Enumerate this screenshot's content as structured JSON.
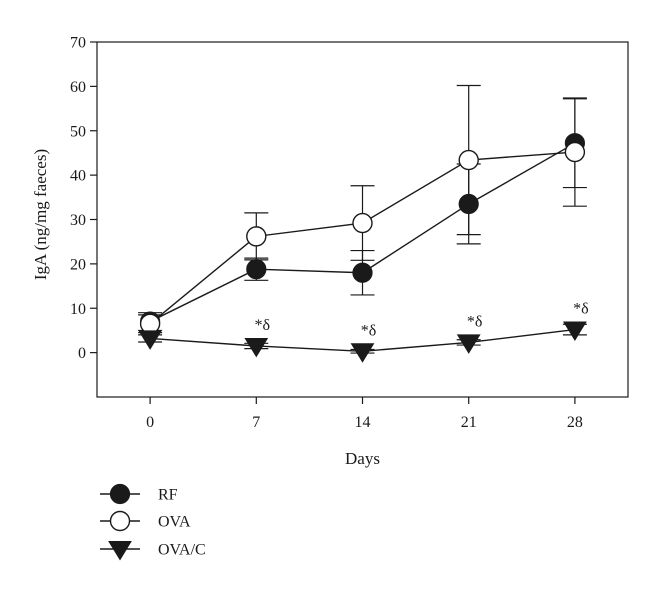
{
  "chart_data": {
    "type": "line",
    "xlabel": "Days",
    "ylabel": "IgA (ng/mg faeces)",
    "x": [
      0,
      7,
      14,
      21,
      28
    ],
    "xlim": [
      -3.5,
      31.5
    ],
    "ylim": [
      -10,
      70
    ],
    "yticks": [
      0,
      10,
      20,
      30,
      40,
      50,
      60,
      70
    ],
    "xticks": [
      0,
      7,
      14,
      21,
      28
    ],
    "grid": false,
    "legend_position": "below-left",
    "series": [
      {
        "name": "RF",
        "marker": "filled-circle",
        "values": [
          7,
          18.8,
          18,
          33.5,
          47.2
        ],
        "errors": [
          2,
          2.5,
          5,
          9,
          10
        ]
      },
      {
        "name": "OVA",
        "marker": "open-circle",
        "values": [
          6.5,
          26.2,
          29.2,
          43.4,
          45.2
        ],
        "errors": [
          2,
          5.3,
          8.4,
          16.8,
          12.2
        ]
      },
      {
        "name": "OVA/C",
        "marker": "filled-triangle-down",
        "values": [
          3.2,
          1.5,
          0.3,
          2.3,
          5.2
        ],
        "errors": [
          0.8,
          0.6,
          0.4,
          0.6,
          1.2
        ]
      }
    ],
    "annotations": [
      {
        "x": 7,
        "y": 1.5,
        "text": "*δ"
      },
      {
        "x": 14,
        "y": 0.3,
        "text": "*δ"
      },
      {
        "x": 21,
        "y": 2.3,
        "text": "*δ"
      },
      {
        "x": 28,
        "y": 5.2,
        "text": "*δ"
      }
    ]
  }
}
